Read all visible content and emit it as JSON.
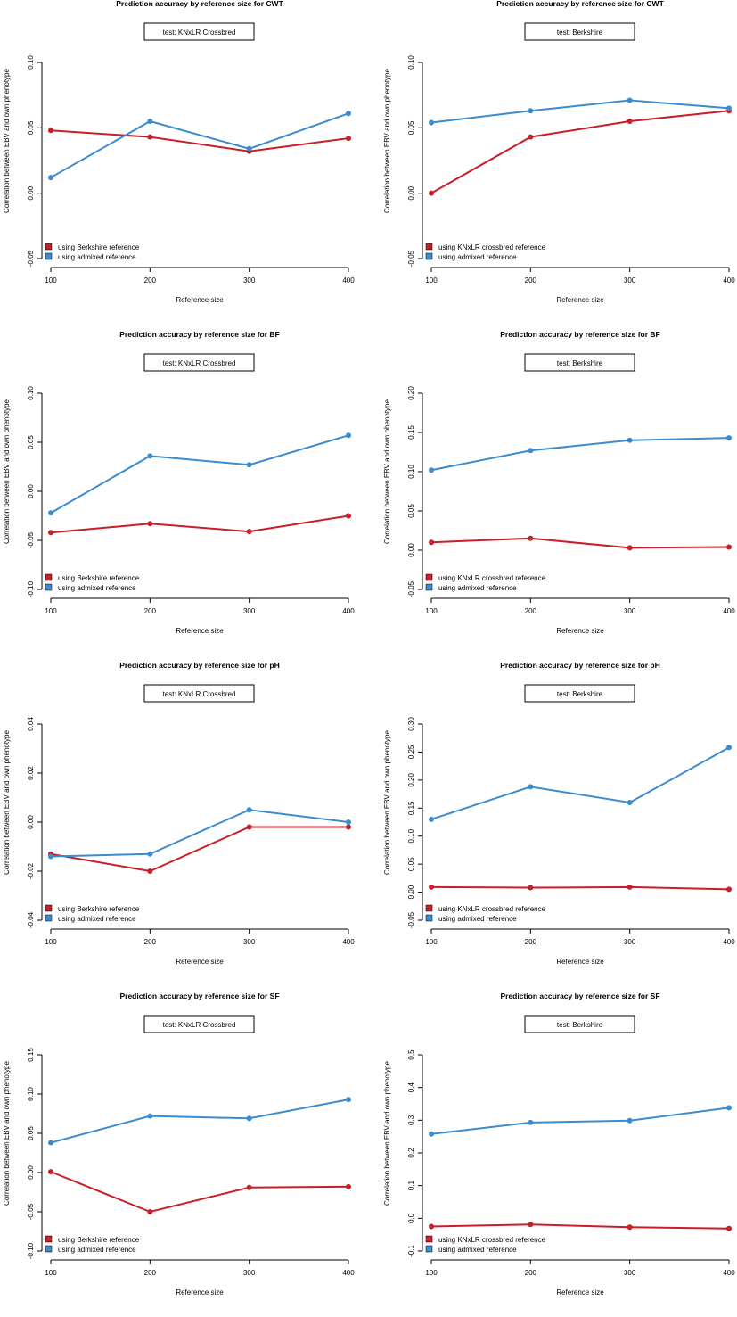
{
  "colors": {
    "red": "#c81e28",
    "blue": "#3a8bd0",
    "axis": "#000000"
  },
  "chart_data": [
    {
      "type": "line",
      "title": "Prediction accuracy by reference size for CWT",
      "test_label": "test: KNxLR Crossbred",
      "xlabel": "Reference size",
      "ylabel": "Correlation between EBV and own phenotype",
      "x": [
        100,
        200,
        300,
        400
      ],
      "ylim": [
        -0.05,
        0.1
      ],
      "yticks": [
        "-0.05",
        "0.00",
        "0.05",
        "0.10"
      ],
      "legend_position": "bottom-left",
      "grid": false,
      "series": [
        {
          "name": "using Berkshire reference",
          "color": "red",
          "values": [
            0.048,
            0.043,
            0.032,
            0.042
          ]
        },
        {
          "name": "using admixed reference",
          "color": "blue",
          "values": [
            0.012,
            0.055,
            0.034,
            0.061
          ]
        }
      ]
    },
    {
      "type": "line",
      "title": "Prediction accuracy by reference size for CWT",
      "test_label": "test: Berkshire",
      "xlabel": "Reference size",
      "ylabel": "Correlation between EBV and own phenotype",
      "x": [
        100,
        200,
        300,
        400
      ],
      "ylim": [
        -0.05,
        0.1
      ],
      "yticks": [
        "-0.05",
        "0.00",
        "0.05",
        "0.10"
      ],
      "legend_position": "bottom-left",
      "grid": false,
      "series": [
        {
          "name": "using KNxLR crossbred reference",
          "color": "red",
          "values": [
            0.0,
            0.043,
            0.055,
            0.063
          ]
        },
        {
          "name": "using admixed reference",
          "color": "blue",
          "values": [
            0.054,
            0.063,
            0.071,
            0.065
          ]
        }
      ]
    },
    {
      "type": "line",
      "title": "Prediction accuracy by reference size for BF",
      "test_label": "test: KNxLR Crossbred",
      "xlabel": "Reference size",
      "ylabel": "Correlation between EBV and own phenotype",
      "x": [
        100,
        200,
        300,
        400
      ],
      "ylim": [
        -0.1,
        0.1
      ],
      "yticks": [
        "-0.10",
        "-0.05",
        "0.00",
        "0.05",
        "0.10"
      ],
      "legend_position": "bottom-left",
      "grid": false,
      "series": [
        {
          "name": "using Berkshire reference",
          "color": "red",
          "values": [
            -0.042,
            -0.033,
            -0.041,
            -0.025
          ]
        },
        {
          "name": "using admixed reference",
          "color": "blue",
          "values": [
            -0.022,
            0.036,
            0.027,
            0.057
          ]
        }
      ]
    },
    {
      "type": "line",
      "title": "Prediction accuracy by reference size for BF",
      "test_label": "test: Berkshire",
      "xlabel": "Reference size",
      "ylabel": "Correlation between EBV and own phenotype",
      "x": [
        100,
        200,
        300,
        400
      ],
      "ylim": [
        -0.05,
        0.2
      ],
      "yticks": [
        "-0.05",
        "0.00",
        "0.05",
        "0.10",
        "0.15",
        "0.20"
      ],
      "legend_position": "bottom-left",
      "grid": false,
      "series": [
        {
          "name": "using KNxLR crossbred reference",
          "color": "red",
          "values": [
            0.01,
            0.015,
            0.003,
            0.004
          ]
        },
        {
          "name": "using admixed reference",
          "color": "blue",
          "values": [
            0.102,
            0.127,
            0.14,
            0.143
          ]
        }
      ]
    },
    {
      "type": "line",
      "title": "Prediction accuracy by reference size for pH",
      "test_label": "test: KNxLR Crossbred",
      "xlabel": "Reference size",
      "ylabel": "Correlation between EBV and own phenotype",
      "x": [
        100,
        200,
        300,
        400
      ],
      "ylim": [
        -0.04,
        0.04
      ],
      "yticks": [
        "-0.04",
        "-0.02",
        "0.00",
        "0.02",
        "0.04"
      ],
      "legend_position": "bottom-left",
      "grid": false,
      "series": [
        {
          "name": "using Berkshire reference",
          "color": "red",
          "values": [
            -0.013,
            -0.02,
            -0.002,
            -0.002
          ]
        },
        {
          "name": "using admixed reference",
          "color": "blue",
          "values": [
            -0.014,
            -0.013,
            0.005,
            0.0
          ]
        }
      ]
    },
    {
      "type": "line",
      "title": "Prediction accuracy by reference size for pH",
      "test_label": "test: Berkshire",
      "xlabel": "Reference size",
      "ylabel": "Correlation between EBV and own phenotype",
      "x": [
        100,
        200,
        300,
        400
      ],
      "ylim": [
        -0.05,
        0.3
      ],
      "yticks": [
        "-0.05",
        "0.00",
        "0.05",
        "0.10",
        "0.15",
        "0.20",
        "0.25",
        "0.30"
      ],
      "legend_position": "bottom-left",
      "grid": false,
      "series": [
        {
          "name": "using KNxLR crossbred reference",
          "color": "red",
          "values": [
            0.009,
            0.008,
            0.009,
            0.005
          ]
        },
        {
          "name": "using admixed reference",
          "color": "blue",
          "values": [
            0.13,
            0.188,
            0.16,
            0.258
          ]
        }
      ]
    },
    {
      "type": "line",
      "title": "Prediction accuracy by reference size for SF",
      "test_label": "test: KNxLR Crossbred",
      "xlabel": "Reference size",
      "ylabel": "Correlation between EBV and own phenotype",
      "x": [
        100,
        200,
        300,
        400
      ],
      "ylim": [
        -0.1,
        0.15
      ],
      "yticks": [
        "-0.10",
        "-0.05",
        "0.00",
        "0.05",
        "0.10",
        "0.15"
      ],
      "legend_position": "bottom-left",
      "grid": false,
      "series": [
        {
          "name": "using Berkshire reference",
          "color": "red",
          "values": [
            0.001,
            -0.05,
            -0.019,
            -0.018
          ]
        },
        {
          "name": "using admixed reference",
          "color": "blue",
          "values": [
            0.038,
            0.072,
            0.069,
            0.093
          ]
        }
      ]
    },
    {
      "type": "line",
      "title": "Prediction accuracy by reference size for SF",
      "test_label": "test: Berkshire",
      "xlabel": "Reference size",
      "ylabel": "Correlation between EBV and own phenotype",
      "x": [
        100,
        200,
        300,
        400
      ],
      "ylim": [
        -0.1,
        0.5
      ],
      "yticks": [
        "-0.1",
        "0.0",
        "0.1",
        "0.2",
        "0.3",
        "0.4",
        "0.5"
      ],
      "legend_position": "bottom-left",
      "grid": false,
      "series": [
        {
          "name": "using KNxLR crossbred reference",
          "color": "red",
          "values": [
            -0.025,
            -0.019,
            -0.027,
            -0.031
          ]
        },
        {
          "name": "using admixed reference",
          "color": "blue",
          "values": [
            0.258,
            0.293,
            0.299,
            0.338
          ]
        }
      ]
    }
  ]
}
